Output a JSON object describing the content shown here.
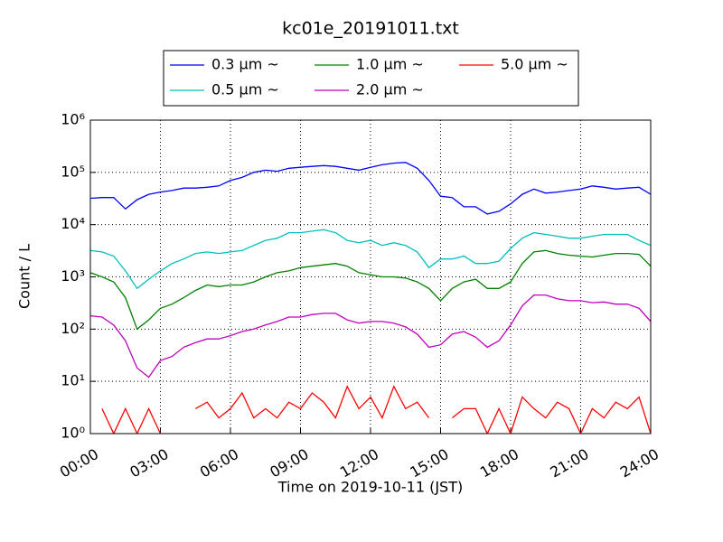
{
  "chart_data": {
    "type": "line",
    "title": "kc01e_20191011.txt",
    "xlabel": "Time on 2019-10-11 (JST)",
    "ylabel": "Count / L",
    "x": [
      0,
      0.5,
      1,
      1.5,
      2,
      2.5,
      3,
      3.5,
      4,
      4.5,
      5,
      5.5,
      6,
      6.5,
      7,
      7.5,
      8,
      8.5,
      9,
      9.5,
      10,
      10.5,
      11,
      11.5,
      12,
      12.5,
      13,
      13.5,
      14,
      14.5,
      15,
      15.5,
      16,
      16.5,
      17,
      17.5,
      18,
      18.5,
      19,
      19.5,
      20,
      20.5,
      21,
      21.5,
      22,
      22.5,
      23,
      23.5,
      24
    ],
    "xlim": [
      0,
      24
    ],
    "xticks": [
      {
        "value": 0,
        "label": "00:00"
      },
      {
        "value": 3,
        "label": "03:00"
      },
      {
        "value": 6,
        "label": "06:00"
      },
      {
        "value": 9,
        "label": "09:00"
      },
      {
        "value": 12,
        "label": "12:00"
      },
      {
        "value": 15,
        "label": "15:00"
      },
      {
        "value": 18,
        "label": "18:00"
      },
      {
        "value": 21,
        "label": "21:00"
      },
      {
        "value": 24,
        "label": "24:00"
      }
    ],
    "ylim": [
      1,
      1000000
    ],
    "log_y": true,
    "yticks": [
      {
        "value": 1,
        "label": "10⁰"
      },
      {
        "value": 10,
        "label": "10¹"
      },
      {
        "value": 100,
        "label": "10²"
      },
      {
        "value": 1000,
        "label": "10³"
      },
      {
        "value": 10000,
        "label": "10⁴"
      },
      {
        "value": 100000,
        "label": "10⁵"
      },
      {
        "value": 1000000,
        "label": "10⁶"
      }
    ],
    "grid": true,
    "legend": "upper center",
    "series": [
      {
        "name": "0.3 μm ~",
        "color": "#0000ff",
        "values": [
          32000,
          33000,
          33000,
          20000,
          30000,
          38000,
          42000,
          45000,
          50000,
          50000,
          52000,
          55000,
          70000,
          80000,
          100000,
          110000,
          105000,
          120000,
          125000,
          130000,
          135000,
          130000,
          120000,
          110000,
          125000,
          140000,
          150000,
          155000,
          120000,
          70000,
          35000,
          33000,
          22000,
          22000,
          16000,
          18000,
          25000,
          38000,
          48000,
          40000,
          42000,
          45000,
          48000,
          55000,
          52000,
          48000,
          50000,
          52000,
          38000
        ]
      },
      {
        "name": "0.5 μm ~",
        "color": "#00bfbf",
        "values": [
          3200,
          3000,
          2500,
          1300,
          600,
          900,
          1300,
          1800,
          2200,
          2800,
          3000,
          2800,
          3000,
          3200,
          4000,
          5000,
          5500,
          7000,
          7000,
          7500,
          8000,
          7000,
          5000,
          4500,
          5000,
          4000,
          4500,
          4000,
          3000,
          1500,
          2200,
          2200,
          2500,
          1800,
          1800,
          2000,
          3500,
          5500,
          7000,
          6500,
          6000,
          5500,
          5500,
          6000,
          6500,
          6500,
          6500,
          5000,
          4000
        ]
      },
      {
        "name": "1.0 μm ~",
        "color": "#008000",
        "values": [
          1200,
          1000,
          800,
          400,
          100,
          150,
          250,
          300,
          400,
          550,
          700,
          650,
          700,
          700,
          800,
          1000,
          1200,
          1300,
          1500,
          1600,
          1700,
          1800,
          1600,
          1200,
          1100,
          1000,
          1000,
          950,
          800,
          600,
          350,
          600,
          800,
          900,
          600,
          600,
          800,
          1800,
          3000,
          3200,
          2800,
          2600,
          2500,
          2400,
          2600,
          2800,
          2800,
          2700,
          1600
        ]
      },
      {
        "name": "2.0 μm ~",
        "color": "#bf00bf",
        "values": [
          180,
          170,
          120,
          60,
          18,
          12,
          25,
          30,
          45,
          55,
          65,
          65,
          75,
          90,
          100,
          120,
          140,
          170,
          170,
          190,
          200,
          200,
          150,
          130,
          140,
          140,
          130,
          110,
          80,
          45,
          50,
          80,
          90,
          70,
          45,
          60,
          120,
          280,
          450,
          450,
          380,
          350,
          350,
          320,
          330,
          300,
          300,
          250,
          140
        ]
      },
      {
        "name": "5.0 μm ~",
        "color": "#ff0000",
        "values": [
          null,
          3,
          1,
          3,
          1,
          3,
          1,
          null,
          null,
          3,
          4,
          2,
          3,
          6,
          2,
          3,
          2,
          4,
          3,
          6,
          4,
          2,
          8,
          3,
          5,
          2,
          8,
          3,
          4,
          2,
          null,
          2,
          3,
          3,
          1,
          3,
          1,
          5,
          3,
          2,
          4,
          3,
          1,
          3,
          2,
          4,
          3,
          5,
          1
        ]
      }
    ]
  }
}
